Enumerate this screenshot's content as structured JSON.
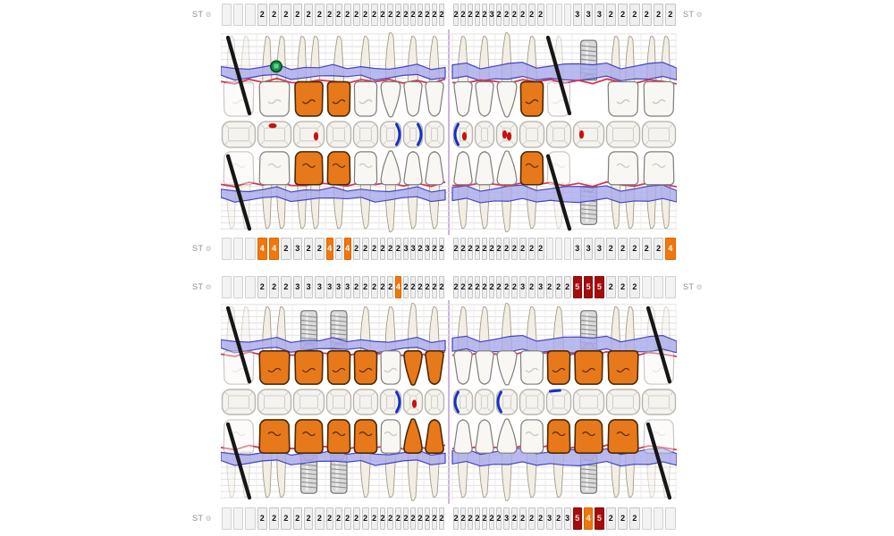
{
  "labels": {
    "st": "ST",
    "gear_icon": "⚙"
  },
  "colors": {
    "highlight_orange": "#f1770a",
    "highlight_darkred": "#a50d0d",
    "crown": "#e8791a",
    "crown_stroke": "#4a2a08",
    "pocket_band": "#a9abec",
    "pocket_band_stroke": "#4444bf",
    "gingiva_line": "#d63450",
    "bracket_blue": "#1530cc",
    "caries_red": "#c81010",
    "marker_green": "#0c9040",
    "midline": "#b58cc9"
  },
  "tooth_widths": [
    40,
    40,
    37,
    30,
    30,
    26,
    24,
    24
  ],
  "st_rows": [
    {
      "left_label": true,
      "right_label": true,
      "left": [
        "",
        "",
        "",
        "2",
        "2",
        "2",
        "2",
        "2",
        "2",
        "2",
        "2",
        "2",
        "2",
        "2",
        "2",
        "2",
        "2",
        "2",
        "2",
        "2",
        "2",
        "2",
        "2",
        "2"
      ],
      "right": [
        "2",
        "2",
        "2",
        "2",
        "2",
        "3",
        "2",
        "2",
        "2",
        "2",
        "2",
        "2",
        "",
        "",
        "",
        "3",
        "3",
        "3",
        "2",
        "2",
        "2",
        "2",
        "2",
        "2"
      ],
      "hl_left": {},
      "hl_right": {}
    },
    {
      "left_label": true,
      "right_label": false,
      "left": [
        "",
        "",
        "",
        "4",
        "4",
        "2",
        "3",
        "2",
        "2",
        "4",
        "2",
        "4",
        "2",
        "2",
        "2",
        "2",
        "2",
        "2",
        "3",
        "3",
        "2",
        "3",
        "2",
        "2"
      ],
      "right": [
        "2",
        "2",
        "2",
        "2",
        "2",
        "2",
        "2",
        "2",
        "2",
        "2",
        "2",
        "2",
        "",
        "",
        "",
        "3",
        "3",
        "3",
        "2",
        "2",
        "2",
        "2",
        "2",
        "4"
      ],
      "hl_left": {
        "3": "orange",
        "4": "orange",
        "9": "orange",
        "11": "orange"
      },
      "hl_right": {
        "23": "orange"
      }
    },
    {
      "left_label": true,
      "right_label": true,
      "left": [
        "",
        "",
        "",
        "2",
        "2",
        "2",
        "3",
        "3",
        "3",
        "3",
        "3",
        "3",
        "2",
        "2",
        "2",
        "2",
        "2",
        "4",
        "2",
        "2",
        "2",
        "2",
        "2",
        "2"
      ],
      "right": [
        "2",
        "2",
        "2",
        "2",
        "2",
        "2",
        "2",
        "2",
        "2",
        "3",
        "2",
        "3",
        "2",
        "2",
        "2",
        "5",
        "5",
        "5",
        "2",
        "2",
        "2",
        "",
        "",
        ""
      ],
      "hl_left": {
        "17": "orange"
      },
      "hl_right": {
        "15": "darkred",
        "16": "darkred",
        "17": "darkred"
      }
    },
    {
      "left_label": true,
      "right_label": false,
      "left": [
        "",
        "",
        "",
        "2",
        "2",
        "2",
        "2",
        "2",
        "2",
        "2",
        "2",
        "2",
        "2",
        "2",
        "2",
        "2",
        "2",
        "2",
        "2",
        "2",
        "2",
        "2",
        "2",
        "2"
      ],
      "right": [
        "2",
        "2",
        "2",
        "2",
        "2",
        "2",
        "2",
        "3",
        "2",
        "2",
        "2",
        "2",
        "3",
        "2",
        "3",
        "5",
        "4",
        "5",
        "2",
        "2",
        "2",
        "",
        "",
        ""
      ],
      "hl_left": {},
      "hl_right": {
        "15": "darkred",
        "16": "orange",
        "17": "darkred"
      }
    }
  ],
  "maxilla": {
    "teeth": [
      {
        "type": "molar",
        "state": "missing"
      },
      {
        "type": "molar",
        "state": "normal",
        "marker": "green-dot"
      },
      {
        "type": "molar",
        "state": "crown"
      },
      {
        "type": "premolar",
        "state": "crown"
      },
      {
        "type": "premolar",
        "state": "normal"
      },
      {
        "type": "canine",
        "state": "normal"
      },
      {
        "type": "incisor",
        "state": "normal"
      },
      {
        "type": "incisor",
        "state": "normal"
      },
      {
        "type": "incisor",
        "state": "normal"
      },
      {
        "type": "incisor",
        "state": "normal"
      },
      {
        "type": "canine",
        "state": "normal"
      },
      {
        "type": "premolar",
        "state": "crown"
      },
      {
        "type": "premolar",
        "state": "missing"
      },
      {
        "type": "premolar",
        "state": "implant"
      },
      {
        "type": "molar",
        "state": "normal"
      },
      {
        "type": "molar",
        "state": "normal"
      }
    ],
    "occlusal": [
      "",
      "red-top",
      "red-right",
      "",
      "",
      "blue-right",
      "blue-right",
      "",
      "blue-left red-right",
      "",
      "red-left red-right",
      "",
      "",
      "red-left",
      "",
      ""
    ]
  },
  "mandible": {
    "teeth": [
      {
        "type": "molar",
        "state": "missing"
      },
      {
        "type": "molar",
        "state": "crown"
      },
      {
        "type": "premolar",
        "state": "implant-crown"
      },
      {
        "type": "premolar",
        "state": "implant-crown"
      },
      {
        "type": "premolar",
        "state": "crown"
      },
      {
        "type": "premolar",
        "state": "normal"
      },
      {
        "type": "canine",
        "state": "crown"
      },
      {
        "type": "incisor",
        "state": "crown"
      },
      {
        "type": "incisor",
        "state": "normal"
      },
      {
        "type": "incisor",
        "state": "normal"
      },
      {
        "type": "canine",
        "state": "normal"
      },
      {
        "type": "premolar",
        "state": "normal"
      },
      {
        "type": "premolar",
        "state": "crown"
      },
      {
        "type": "premolar",
        "state": "implant-crown"
      },
      {
        "type": "molar",
        "state": "crown"
      },
      {
        "type": "molar",
        "state": "missing"
      }
    ],
    "occlusal": [
      "",
      "",
      "",
      "",
      "",
      "blue-right",
      "red-right",
      "",
      "blue-left",
      "",
      "blue-left",
      "",
      "blue-top",
      "",
      "",
      ""
    ]
  }
}
